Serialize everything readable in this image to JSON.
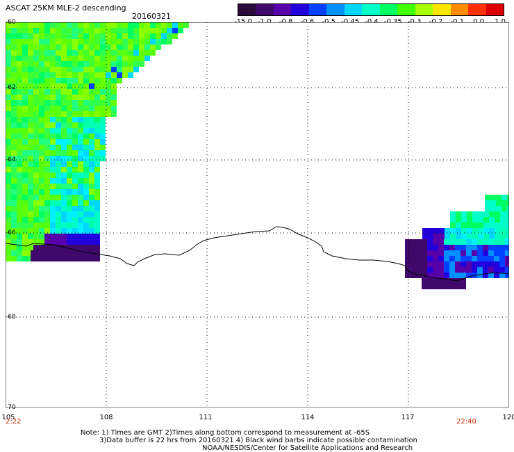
{
  "title": "ASCAT 25KM MLE-2 descending",
  "date": "20160321",
  "colorbar": {
    "labels": [
      "-15.0",
      "-1.0",
      "-0.8",
      "-0.6",
      "-0.5",
      "-0.45",
      "-0.4",
      "-0.35",
      "-0.3",
      "-0.2",
      "-0.1",
      "0.0",
      "1.0"
    ],
    "colors": [
      "#2a0a3a",
      "#40086a",
      "#5500aa",
      "#2200dd",
      "#0040ff",
      "#0090ff",
      "#00d8ff",
      "#00ffc8",
      "#00ff60",
      "#40ff00",
      "#a8ff00",
      "#ffe800",
      "#ff8c00",
      "#ff3000",
      "#dd0000"
    ]
  },
  "axes": {
    "lat_labels": [
      "-60",
      "-62",
      "-64",
      "-66",
      "-68",
      "-70"
    ],
    "lon_labels": [
      "105",
      "108",
      "111",
      "114",
      "117",
      "120"
    ],
    "lon_range": [
      105,
      120
    ],
    "lat_range": [
      -60,
      -70
    ],
    "grid": "dotted"
  },
  "times": {
    "start": "2:22",
    "end": "22:40"
  },
  "notes": {
    "line1": "Note: 1) Times are GMT 2)Times along bottom correspond to measurement at -65S",
    "line2": "3)Data buffer is 22 hrs from 20160321 4) Black wind barbs indicate possible contamination",
    "line3": "NOAA/NESDIS/Center for Satellite Applications and Research"
  }
}
